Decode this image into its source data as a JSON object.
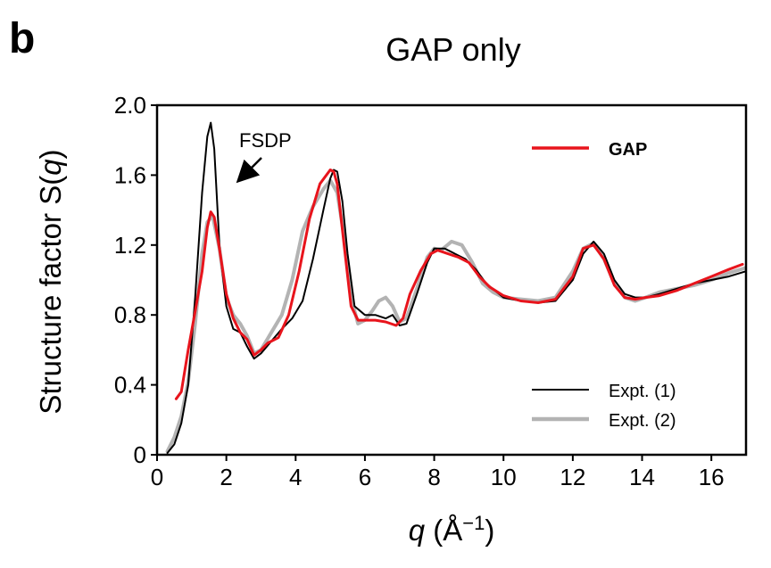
{
  "panel_letter": "b",
  "chart_data": {
    "type": "line",
    "title": "GAP only",
    "xlabel_italic": "q",
    "xlabel_rest": " (Å",
    "xlabel_sup": "−1",
    "xlabel_close": ")",
    "ylabel_prefix": "Structure factor ",
    "ylabel_q": "q",
    "ylabel_open": "S(",
    "ylabel_close": ")",
    "xlim": [
      0,
      17
    ],
    "ylim": [
      0,
      2.0
    ],
    "xticks": [
      0,
      2,
      4,
      6,
      8,
      10,
      12,
      14,
      16
    ],
    "xtick_labels": [
      "0",
      "2",
      "4",
      "6",
      "8",
      "10",
      "12",
      "14",
      "16"
    ],
    "yticks": [
      0,
      0.4,
      0.8,
      1.2,
      1.6,
      2.0
    ],
    "ytick_labels": [
      "0",
      "0.4",
      "0.8",
      "1.2",
      "1.6",
      "2.0"
    ],
    "grid": false,
    "annotation": {
      "text": "FSDP",
      "arrow_to": [
        2.15,
        1.53
      ]
    },
    "legends": [
      {
        "position": "top-right",
        "entries": [
          "GAP"
        ]
      },
      {
        "position": "bottom-right",
        "entries": [
          "Expt. (1)",
          "Expt. (2)"
        ]
      }
    ],
    "series": [
      {
        "name": "Expt. (2)",
        "color": "#b3b3b3",
        "width": 4,
        "x": [
          0.3,
          0.5,
          0.7,
          0.9,
          1.1,
          1.3,
          1.45,
          1.6,
          1.8,
          2.0,
          2.2,
          2.4,
          2.6,
          2.8,
          3.0,
          3.3,
          3.6,
          3.9,
          4.2,
          4.5,
          4.8,
          5.0,
          5.2,
          5.4,
          5.6,
          5.8,
          6.0,
          6.2,
          6.4,
          6.6,
          6.8,
          7.0,
          7.2,
          7.5,
          7.8,
          8.0,
          8.2,
          8.5,
          8.8,
          9.1,
          9.4,
          9.7,
          10.0,
          10.5,
          11.0,
          11.5,
          12.0,
          12.3,
          12.6,
          12.9,
          13.2,
          13.5,
          13.8,
          14.1,
          14.5,
          15.0,
          15.5,
          16.0,
          16.5,
          17.0
        ],
        "y": [
          0.02,
          0.1,
          0.22,
          0.42,
          0.75,
          1.15,
          1.33,
          1.37,
          1.18,
          0.9,
          0.8,
          0.75,
          0.68,
          0.58,
          0.6,
          0.7,
          0.8,
          1.0,
          1.28,
          1.42,
          1.52,
          1.57,
          1.5,
          1.25,
          0.9,
          0.75,
          0.77,
          0.82,
          0.88,
          0.9,
          0.85,
          0.76,
          0.78,
          0.95,
          1.13,
          1.18,
          1.17,
          1.22,
          1.2,
          1.1,
          0.98,
          0.93,
          0.9,
          0.89,
          0.88,
          0.9,
          1.05,
          1.18,
          1.21,
          1.12,
          0.98,
          0.9,
          0.88,
          0.9,
          0.93,
          0.95,
          0.97,
          1.0,
          1.04,
          1.07
        ]
      },
      {
        "name": "Expt. (1)",
        "color": "#000000",
        "width": 2,
        "x": [
          0.3,
          0.5,
          0.7,
          0.9,
          1.1,
          1.3,
          1.45,
          1.55,
          1.65,
          1.8,
          2.0,
          2.2,
          2.4,
          2.6,
          2.8,
          3.0,
          3.3,
          3.6,
          3.9,
          4.2,
          4.5,
          4.8,
          5.0,
          5.1,
          5.2,
          5.35,
          5.5,
          5.7,
          6.0,
          6.3,
          6.6,
          6.8,
          7.0,
          7.2,
          7.5,
          7.8,
          8.0,
          8.3,
          8.6,
          8.9,
          9.2,
          9.5,
          10.0,
          10.5,
          11.0,
          11.5,
          12.0,
          12.3,
          12.6,
          12.9,
          13.2,
          13.5,
          13.8,
          14.1,
          14.5,
          15.0,
          15.5,
          16.0,
          16.5,
          17.0
        ],
        "y": [
          0.01,
          0.06,
          0.18,
          0.4,
          0.9,
          1.5,
          1.82,
          1.9,
          1.75,
          1.2,
          0.85,
          0.72,
          0.7,
          0.62,
          0.55,
          0.58,
          0.65,
          0.72,
          0.78,
          0.88,
          1.12,
          1.4,
          1.58,
          1.63,
          1.62,
          1.45,
          1.15,
          0.85,
          0.8,
          0.8,
          0.78,
          0.8,
          0.74,
          0.75,
          0.92,
          1.1,
          1.18,
          1.18,
          1.15,
          1.12,
          1.06,
          0.98,
          0.9,
          0.88,
          0.87,
          0.88,
          1.0,
          1.15,
          1.22,
          1.15,
          1.0,
          0.92,
          0.9,
          0.9,
          0.92,
          0.95,
          0.98,
          1.0,
          1.02,
          1.05
        ]
      },
      {
        "name": "GAP",
        "color": "#e8141c",
        "width": 3,
        "x": [
          0.55,
          0.7,
          0.9,
          1.1,
          1.3,
          1.45,
          1.55,
          1.65,
          1.8,
          2.0,
          2.2,
          2.4,
          2.6,
          2.8,
          3.0,
          3.2,
          3.5,
          3.8,
          4.1,
          4.4,
          4.7,
          5.0,
          5.1,
          5.2,
          5.4,
          5.6,
          5.8,
          6.0,
          6.3,
          6.6,
          6.9,
          7.1,
          7.3,
          7.6,
          7.9,
          8.1,
          8.4,
          8.7,
          9.0,
          9.3,
          9.6,
          10.0,
          10.5,
          11.0,
          11.5,
          12.0,
          12.3,
          12.6,
          12.9,
          13.2,
          13.5,
          13.8,
          14.1,
          14.5,
          15.0,
          15.5,
          16.0,
          16.5,
          16.9
        ],
        "y": [
          0.32,
          0.36,
          0.6,
          0.82,
          1.05,
          1.3,
          1.39,
          1.36,
          1.18,
          0.92,
          0.78,
          0.7,
          0.66,
          0.57,
          0.6,
          0.64,
          0.67,
          0.8,
          1.05,
          1.35,
          1.55,
          1.63,
          1.62,
          1.55,
          1.2,
          0.85,
          0.77,
          0.77,
          0.77,
          0.76,
          0.74,
          0.78,
          0.92,
          1.05,
          1.15,
          1.17,
          1.15,
          1.13,
          1.1,
          1.02,
          0.96,
          0.91,
          0.88,
          0.87,
          0.89,
          1.02,
          1.18,
          1.2,
          1.12,
          0.97,
          0.9,
          0.89,
          0.9,
          0.91,
          0.94,
          0.98,
          1.02,
          1.06,
          1.09
        ]
      }
    ]
  }
}
